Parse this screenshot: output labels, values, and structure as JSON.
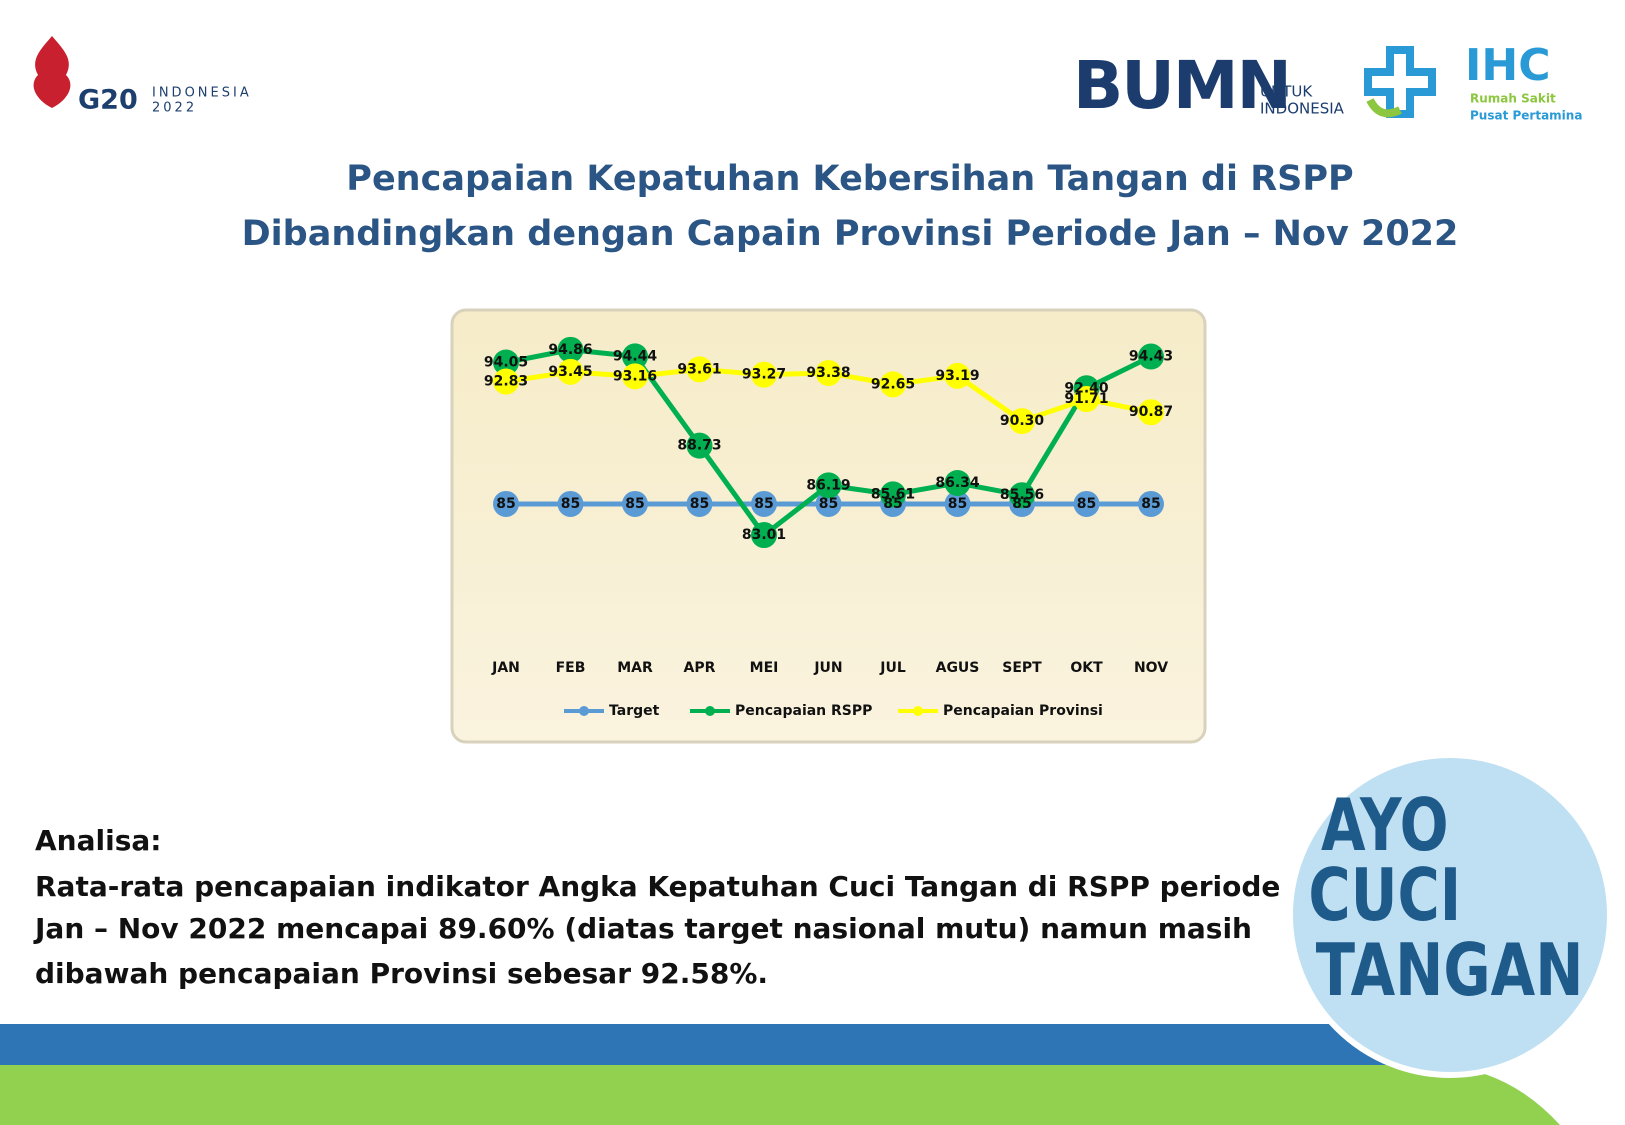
{
  "logos": {
    "g20": "G20",
    "g20_country": "INDONESIA",
    "g20_year": "2022",
    "bumn": "BUMN",
    "bumn_tag1": "UNTUK",
    "bumn_tag2": "INDONESIA",
    "ihc": "IHC",
    "ihc_tag1": "Rumah Sakit",
    "ihc_tag2": "Pusat Pertamina"
  },
  "title": [
    "Pencapaian Kepatuhan Kebersihan Tangan di RSPP",
    "Dibandingkan dengan Capain Provinsi Periode Jan – Nov 2022"
  ],
  "chart_data": {
    "type": "line",
    "categories": [
      "JAN",
      "FEB",
      "MAR",
      "APR",
      "MEI",
      "JUN",
      "JUL",
      "AGUS",
      "SEPT",
      "OKT",
      "NOV"
    ],
    "ylim": [
      77,
      96
    ],
    "legend": "bottom",
    "series": [
      {
        "name": "Target",
        "color": "#5b9bd5",
        "values": [
          85,
          85,
          85,
          85,
          85,
          85,
          85,
          85,
          85,
          85,
          85
        ]
      },
      {
        "name": "Pencapaian RSPP",
        "color": "#00b050",
        "values": [
          94.05,
          94.86,
          94.44,
          88.73,
          83.01,
          86.19,
          85.61,
          86.34,
          85.56,
          92.4,
          94.43
        ],
        "value_labels": [
          "94.05",
          "94.86",
          "94.44",
          "88.73",
          "83.01",
          "86.19",
          "85.61",
          "86.34",
          "85.56",
          "92.40",
          "94.43"
        ]
      },
      {
        "name": "Pencapaian Provinsi",
        "color": "#ffff00",
        "values": [
          92.83,
          93.45,
          93.16,
          93.61,
          93.27,
          93.38,
          92.65,
          93.19,
          90.3,
          91.71,
          90.87
        ],
        "value_labels": [
          "92.83",
          "93.45",
          "93.16",
          "93.61",
          "93.27",
          "93.38",
          "92.65",
          "93.19",
          "90.30",
          "91.71",
          "90.87"
        ]
      }
    ]
  },
  "analysis": {
    "heading": "Analisa:",
    "lines": [
      "Rata-rata pencapaian indikator Angka Kepatuhan Cuci Tangan di RSPP periode",
      "Jan – Nov 2022 mencapai 89.60% (diatas target nasional mutu) namun masih",
      "dibawah pencapaian Provinsi sebesar 92.58%."
    ]
  },
  "badge": [
    "AYO",
    "CUCI",
    "TANGAN"
  ]
}
